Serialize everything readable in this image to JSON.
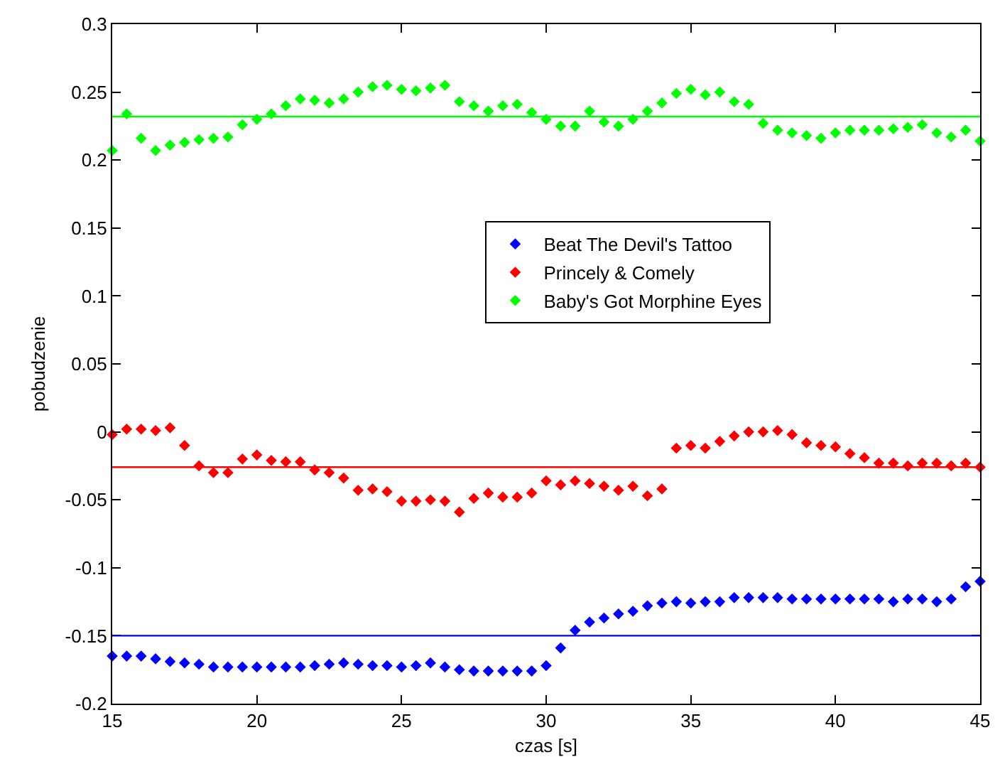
{
  "chart_data": {
    "type": "scatter",
    "xlabel": "czas [s]",
    "ylabel": "pobudzenie",
    "x": [
      15,
      15.5,
      16,
      16.5,
      17,
      17.5,
      18,
      18.5,
      19,
      19.5,
      20,
      20.5,
      21,
      21.5,
      22,
      22.5,
      23,
      23.5,
      24,
      24.5,
      25,
      25.5,
      26,
      26.5,
      27,
      27.5,
      28,
      28.5,
      29,
      29.5,
      30,
      30.5,
      31,
      31.5,
      32,
      32.5,
      33,
      33.5,
      34,
      34.5,
      35,
      35.5,
      36,
      36.5,
      37,
      37.5,
      38,
      38.5,
      39,
      39.5,
      40,
      40.5,
      41,
      41.5,
      42,
      42.5,
      43,
      43.5,
      44,
      44.5,
      45
    ],
    "series": [
      {
        "name": "Beat The Devil's Tattoo",
        "color": "#0000ff",
        "values": [
          -0.165,
          -0.165,
          -0.165,
          -0.167,
          -0.169,
          -0.17,
          -0.171,
          -0.173,
          -0.173,
          -0.173,
          -0.173,
          -0.173,
          -0.173,
          -0.173,
          -0.172,
          -0.171,
          -0.17,
          -0.171,
          -0.172,
          -0.172,
          -0.173,
          -0.172,
          -0.17,
          -0.173,
          -0.175,
          -0.176,
          -0.176,
          -0.176,
          -0.176,
          -0.176,
          -0.172,
          -0.159,
          -0.146,
          -0.14,
          -0.137,
          -0.134,
          -0.132,
          -0.128,
          -0.126,
          -0.125,
          -0.126,
          -0.125,
          -0.125,
          -0.122,
          -0.122,
          -0.122,
          -0.122,
          -0.123,
          -0.123,
          -0.123,
          -0.123,
          -0.123,
          -0.123,
          -0.123,
          -0.125,
          -0.123,
          -0.123,
          -0.125,
          -0.123,
          -0.114,
          -0.11
        ]
      },
      {
        "name": "Princely & Comely",
        "color": "#ff0000",
        "values": [
          -0.002,
          0.002,
          0.002,
          0.001,
          0.003,
          -0.01,
          -0.025,
          -0.03,
          -0.03,
          -0.02,
          -0.017,
          -0.021,
          -0.022,
          -0.022,
          -0.028,
          -0.03,
          -0.034,
          -0.043,
          -0.042,
          -0.044,
          -0.051,
          -0.051,
          -0.05,
          -0.051,
          -0.059,
          -0.049,
          -0.045,
          -0.048,
          -0.048,
          -0.045,
          -0.036,
          -0.039,
          -0.036,
          -0.038,
          -0.04,
          -0.043,
          -0.04,
          -0.047,
          -0.042,
          -0.012,
          -0.01,
          -0.012,
          -0.007,
          -0.003,
          0,
          0,
          0.001,
          -0.002,
          -0.008,
          -0.01,
          -0.011,
          -0.016,
          -0.019,
          -0.023,
          -0.023,
          -0.025,
          -0.023,
          -0.023,
          -0.025,
          -0.023,
          -0.026
        ]
      },
      {
        "name": "Baby's Got Morphine Eyes",
        "color": "#00ff00",
        "values": [
          0.207,
          0.234,
          0.216,
          0.207,
          0.211,
          0.213,
          0.215,
          0.216,
          0.217,
          0.226,
          0.23,
          0.234,
          0.24,
          0.245,
          0.244,
          0.242,
          0.245,
          0.25,
          0.254,
          0.255,
          0.252,
          0.251,
          0.253,
          0.255,
          0.243,
          0.24,
          0.236,
          0.24,
          0.241,
          0.235,
          0.23,
          0.225,
          0.225,
          0.236,
          0.228,
          0.225,
          0.23,
          0.236,
          0.242,
          0.249,
          0.252,
          0.248,
          0.25,
          0.243,
          0.241,
          0.227,
          0.222,
          0.22,
          0.218,
          0.216,
          0.22,
          0.222,
          0.222,
          0.222,
          0.223,
          0.224,
          0.226,
          0.22,
          0.217,
          0.222,
          0.214
        ]
      }
    ],
    "ref_lines": [
      {
        "axis": "y",
        "value": -0.15,
        "color": "#0000ff"
      },
      {
        "axis": "y",
        "value": -0.026,
        "color": "#ff0000"
      },
      {
        "axis": "y",
        "value": 0.232,
        "color": "#00ff00"
      }
    ],
    "xlim": [
      15,
      45
    ],
    "xticks": [
      15,
      20,
      25,
      30,
      35,
      40,
      45
    ],
    "ylim": [
      -0.2,
      0.3
    ],
    "yticks": [
      -0.2,
      -0.15,
      -0.1,
      -0.05,
      0,
      0.05,
      0.1,
      0.15,
      0.2,
      0.25,
      0.3
    ],
    "grid": false,
    "legend": "right",
    "marker": "diamond"
  }
}
